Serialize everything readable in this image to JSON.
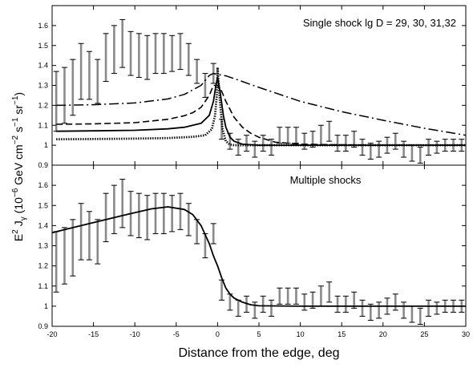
{
  "chart_data": [
    {
      "type": "line",
      "annotation": "Single shock lg D = 29, 30, 31,32",
      "xlim": [
        -20,
        30
      ],
      "ylim": [
        0.9,
        1.7
      ],
      "x_ticks": [
        -20,
        -15,
        -10,
        -5,
        0,
        5,
        10,
        15,
        20,
        25,
        30
      ],
      "y_ticks": [
        0.9,
        1,
        1.1,
        1.2,
        1.3,
        1.4,
        1.5,
        1.6
      ],
      "x_tick_labels_shown": false,
      "grid": false,
      "errorbars": {
        "x": [
          -19.5,
          -18.5,
          -17.5,
          -16.5,
          -15.5,
          -14.5,
          -13.5,
          -12.5,
          -11.5,
          -10.5,
          -9.5,
          -8.5,
          -7.5,
          -6.5,
          -5.5,
          -4.5,
          -3.5,
          -2.5,
          -1.5,
          -0.5,
          0.5,
          1.5,
          2.5,
          3.5,
          4.5,
          5.5,
          6.5,
          7.5,
          8.5,
          9.5,
          10.5,
          11.5,
          12.5,
          13.5,
          14.5,
          15.5,
          16.5,
          17.5,
          18.5,
          19.5,
          20.5,
          21.5,
          22.5,
          23.5,
          24.5,
          25.5,
          26.5,
          27.5,
          28.5,
          29.5
        ],
        "y": [
          1.22,
          1.25,
          1.29,
          1.37,
          1.35,
          1.32,
          1.44,
          1.48,
          1.51,
          1.46,
          1.45,
          1.44,
          1.46,
          1.46,
          1.46,
          1.47,
          1.43,
          1.37,
          1.3,
          1.36,
          1.08,
          1.02,
          0.99,
          1.01,
          0.98,
          1.01,
          0.99,
          1.05,
          1.05,
          1.05,
          1.02,
          1.03,
          1.05,
          1.07,
          1.01,
          1.01,
          1.03,
          0.99,
          0.97,
          0.98,
          1.0,
          1.02,
          0.98,
          0.96,
          0.95,
          0.99,
          0.99,
          1.0,
          1.0,
          1.0
        ],
        "err": [
          0.15,
          0.14,
          0.14,
          0.14,
          0.12,
          0.11,
          0.12,
          0.12,
          0.12,
          0.11,
          0.11,
          0.11,
          0.1,
          0.1,
          0.09,
          0.09,
          0.08,
          0.06,
          0.06,
          0.05,
          0.05,
          0.04,
          0.04,
          0.04,
          0.04,
          0.04,
          0.04,
          0.04,
          0.04,
          0.04,
          0.04,
          0.04,
          0.05,
          0.05,
          0.04,
          0.04,
          0.04,
          0.04,
          0.04,
          0.04,
          0.04,
          0.04,
          0.04,
          0.04,
          0.04,
          0.04,
          0.03,
          0.03,
          0.03,
          0.03
        ]
      },
      "series": [
        {
          "style": "dashdot",
          "x": [
            -19.5,
            -15,
            -10,
            -6,
            -4,
            -2,
            -1,
            -0.5,
            0,
            1,
            2,
            5,
            10,
            15,
            20,
            25,
            30
          ],
          "y": [
            1.2,
            1.203,
            1.212,
            1.232,
            1.255,
            1.3,
            1.35,
            1.36,
            1.355,
            1.348,
            1.334,
            1.29,
            1.22,
            1.168,
            1.125,
            1.085,
            1.05
          ]
        },
        {
          "style": "dashed",
          "x": [
            -19.5,
            -15,
            -10,
            -6,
            -4,
            -3,
            -2,
            -1,
            -0.5,
            0,
            0.5,
            1,
            2,
            3,
            4,
            5,
            7,
            10,
            15,
            20,
            30
          ],
          "y": [
            1.105,
            1.107,
            1.113,
            1.13,
            1.148,
            1.163,
            1.19,
            1.25,
            1.3,
            1.3,
            1.27,
            1.22,
            1.14,
            1.09,
            1.06,
            1.04,
            1.015,
            1.005,
            1.002,
            1.0,
            1.0
          ]
        },
        {
          "style": "solid",
          "x": [
            -19.5,
            -15,
            -10,
            -6,
            -4,
            -2,
            -1,
            -0.5,
            -0.2,
            0,
            0.3,
            0.7,
            1,
            1.5,
            2,
            3,
            5,
            10,
            30
          ],
          "y": [
            1.07,
            1.072,
            1.075,
            1.082,
            1.09,
            1.11,
            1.15,
            1.22,
            1.3,
            1.34,
            1.27,
            1.15,
            1.09,
            1.04,
            1.02,
            1.005,
            1.0,
            1.0,
            1.0
          ]
        },
        {
          "style": "dotted",
          "x": [
            -19.5,
            -15,
            -10,
            -6,
            -3,
            -1.5,
            -0.7,
            -0.3,
            -0.1,
            0,
            0.1,
            0.3,
            0.6,
            1,
            1.5,
            2,
            5,
            30
          ],
          "y": [
            1.03,
            1.031,
            1.033,
            1.036,
            1.042,
            1.05,
            1.08,
            1.15,
            1.25,
            1.39,
            1.33,
            1.21,
            1.08,
            1.02,
            1.003,
            1.0,
            1.0,
            1.0
          ]
        }
      ]
    },
    {
      "type": "line",
      "annotation": "Multiple shocks",
      "xlim": [
        -20,
        30
      ],
      "ylim": [
        0.9,
        1.7
      ],
      "x_ticks": [
        -20,
        -15,
        -10,
        -5,
        0,
        5,
        10,
        15,
        20,
        25,
        30
      ],
      "y_ticks": [
        0.9,
        1,
        1.1,
        1.2,
        1.3,
        1.4,
        1.5,
        1.6
      ],
      "grid": false,
      "xlabel": "Distance from the edge, deg",
      "errorbars": {
        "x": [
          -19.5,
          -18.5,
          -17.5,
          -16.5,
          -15.5,
          -14.5,
          -13.5,
          -12.5,
          -11.5,
          -10.5,
          -9.5,
          -8.5,
          -7.5,
          -6.5,
          -5.5,
          -4.5,
          -3.5,
          -2.5,
          -1.5,
          -0.5,
          0.5,
          1.5,
          2.5,
          3.5,
          4.5,
          5.5,
          6.5,
          7.5,
          8.5,
          9.5,
          10.5,
          11.5,
          12.5,
          13.5,
          14.5,
          15.5,
          16.5,
          17.5,
          18.5,
          19.5,
          20.5,
          21.5,
          22.5,
          23.5,
          24.5,
          25.5,
          26.5,
          27.5,
          28.5,
          29.5
        ],
        "y": [
          1.22,
          1.25,
          1.29,
          1.37,
          1.35,
          1.32,
          1.44,
          1.48,
          1.51,
          1.46,
          1.45,
          1.44,
          1.46,
          1.46,
          1.46,
          1.47,
          1.43,
          1.37,
          1.3,
          1.36,
          1.08,
          1.02,
          0.99,
          1.01,
          0.98,
          1.01,
          0.99,
          1.05,
          1.05,
          1.05,
          1.02,
          1.03,
          1.05,
          1.07,
          1.01,
          1.01,
          1.03,
          0.99,
          0.97,
          0.98,
          1.0,
          1.02,
          0.98,
          0.96,
          0.95,
          0.99,
          0.99,
          1.0,
          1.0,
          1.0
        ],
        "err": [
          0.15,
          0.14,
          0.14,
          0.14,
          0.12,
          0.11,
          0.12,
          0.12,
          0.12,
          0.11,
          0.11,
          0.11,
          0.1,
          0.1,
          0.09,
          0.09,
          0.08,
          0.06,
          0.06,
          0.05,
          0.05,
          0.04,
          0.04,
          0.04,
          0.04,
          0.04,
          0.04,
          0.04,
          0.04,
          0.04,
          0.04,
          0.04,
          0.05,
          0.05,
          0.04,
          0.04,
          0.04,
          0.04,
          0.04,
          0.04,
          0.04,
          0.04,
          0.04,
          0.04,
          0.04,
          0.04,
          0.03,
          0.03,
          0.03,
          0.03
        ]
      },
      "series": [
        {
          "style": "solid",
          "x": [
            -20,
            -17,
            -14,
            -11,
            -8,
            -6,
            -4,
            -3,
            -2,
            -1,
            -0.5,
            0,
            0.5,
            1,
            1.5,
            2,
            3,
            4,
            5,
            10,
            20,
            30
          ],
          "y": [
            1.365,
            1.395,
            1.425,
            1.455,
            1.483,
            1.493,
            1.48,
            1.455,
            1.4,
            1.31,
            1.25,
            1.2,
            1.14,
            1.09,
            1.06,
            1.04,
            1.02,
            1.007,
            1.002,
            1.0,
            1.0,
            1.0
          ]
        }
      ]
    }
  ],
  "shared_ylabel": "E2 Jγ (10−6 GeV cm−2 s−1 sr−1)",
  "ylabel_parts": {
    "base": "E",
    "exp_energy": "2",
    "j": " J",
    "sub_gamma": "γ",
    "paren_open": " (10",
    "exp_ten": "−6",
    "gev_cm": " GeV cm",
    "exp_cm": "−2",
    "s": " s",
    "exp_s": "−1",
    "sr": " sr",
    "exp_sr": "−1",
    "paren_close": ")"
  },
  "colors": {
    "axes": "#000000",
    "errorbars": "#8a8a8a",
    "lines": "#000000",
    "background": "#ffffff"
  }
}
